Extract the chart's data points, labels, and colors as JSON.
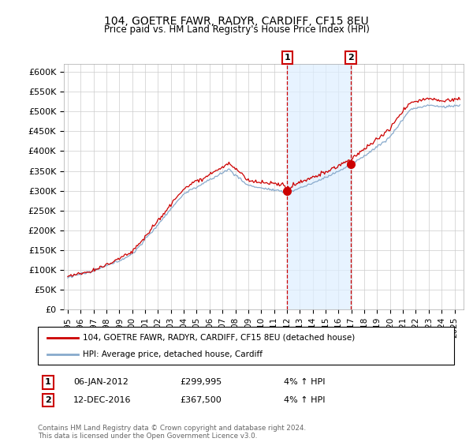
{
  "title": "104, GOETRE FAWR, RADYR, CARDIFF, CF15 8EU",
  "subtitle": "Price paid vs. HM Land Registry's House Price Index (HPI)",
  "ylim": [
    0,
    620000
  ],
  "yticks": [
    0,
    50000,
    100000,
    150000,
    200000,
    250000,
    300000,
    350000,
    400000,
    450000,
    500000,
    550000,
    600000
  ],
  "ytick_labels": [
    "£0",
    "£50K",
    "£100K",
    "£150K",
    "£200K",
    "£250K",
    "£300K",
    "£350K",
    "£400K",
    "£450K",
    "£500K",
    "£550K",
    "£600K"
  ],
  "xlim_start": 1994.7,
  "xlim_end": 2025.7,
  "line_red_color": "#cc0000",
  "line_blue_color": "#88aacc",
  "fill_between_color": "#ddeeff",
  "line1_label": "104, GOETRE FAWR, RADYR, CARDIFF, CF15 8EU (detached house)",
  "line2_label": "HPI: Average price, detached house, Cardiff",
  "marker1_x": 2012.03,
  "marker1_y": 299995,
  "marker2_x": 2016.96,
  "marker2_y": 367500,
  "marker1_date": "06-JAN-2012",
  "marker1_price": "£299,995",
  "marker1_hpi": "4% ↑ HPI",
  "marker2_date": "12-DEC-2016",
  "marker2_price": "£367,500",
  "marker2_hpi": "4% ↑ HPI",
  "footnote": "Contains HM Land Registry data © Crown copyright and database right 2024.\nThis data is licensed under the Open Government Licence v3.0.",
  "background_color": "#ffffff",
  "grid_color": "#cccccc"
}
